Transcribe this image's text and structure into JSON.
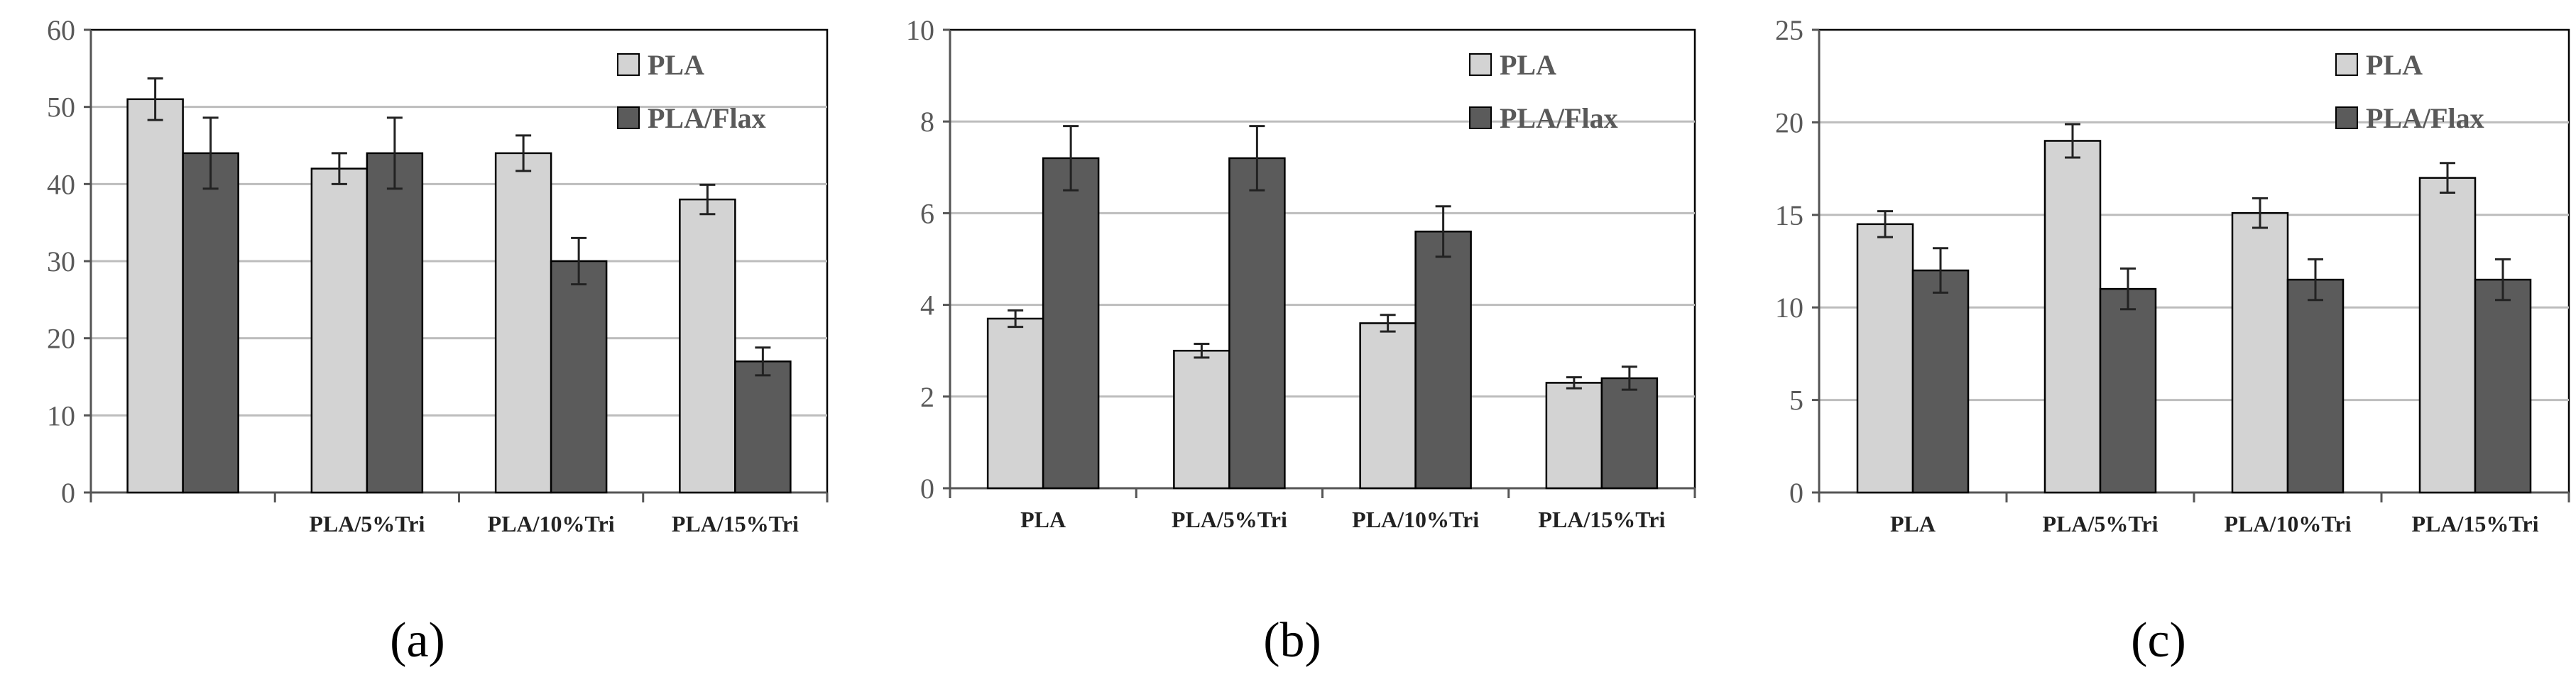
{
  "colors": {
    "PLA": "#d3d3d3",
    "PLA/Flax": "#5b5b5b"
  },
  "chart_data": [
    {
      "type": "bar",
      "panel_label": "(a)",
      "categories": [
        "",
        "PLA/5%Tri",
        "PLA/10%Tri",
        "PLA/15%Tri"
      ],
      "series": [
        {
          "name": "PLA",
          "values": [
            51,
            42,
            44,
            38
          ],
          "errors": [
            2.7,
            2.0,
            2.3,
            1.9
          ]
        },
        {
          "name": "PLA/Flax",
          "values": [
            44,
            44,
            30,
            17
          ],
          "errors": [
            4.6,
            4.6,
            3.0,
            1.8
          ]
        }
      ],
      "yticks": [
        0,
        10,
        20,
        30,
        40,
        50,
        60
      ],
      "ylim": [
        0,
        60
      ],
      "grid": true,
      "legend": "top-right"
    },
    {
      "type": "bar",
      "panel_label": "(b)",
      "categories": [
        "PLA",
        "PLA/5%Tri",
        "PLA/10%Tri",
        "PLA/15%Tri"
      ],
      "series": [
        {
          "name": "PLA",
          "values": [
            3.7,
            3.0,
            3.6,
            2.3
          ],
          "errors": [
            0.18,
            0.15,
            0.18,
            0.12
          ]
        },
        {
          "name": "PLA/Flax",
          "values": [
            7.2,
            7.2,
            5.6,
            2.4
          ],
          "errors": [
            0.7,
            0.7,
            0.55,
            0.25
          ]
        }
      ],
      "yticks": [
        0,
        2,
        4,
        6,
        8,
        10
      ],
      "ylim": [
        0,
        10
      ],
      "grid": true,
      "legend": "top-right"
    },
    {
      "type": "bar",
      "panel_label": "(c)",
      "categories": [
        "PLA",
        "PLA/5%Tri",
        "PLA/10%Tri",
        "PLA/15%Tri"
      ],
      "series": [
        {
          "name": "PLA",
          "values": [
            14.5,
            19,
            15.1,
            17
          ],
          "errors": [
            0.7,
            0.9,
            0.8,
            0.8
          ]
        },
        {
          "name": "PLA/Flax",
          "values": [
            12,
            11,
            11.5,
            11.5
          ],
          "errors": [
            1.2,
            1.1,
            1.1,
            1.1
          ]
        }
      ],
      "yticks": [
        0,
        5,
        10,
        15,
        20,
        25
      ],
      "ylim": [
        0,
        25
      ],
      "grid": true,
      "legend": "top-right"
    }
  ]
}
